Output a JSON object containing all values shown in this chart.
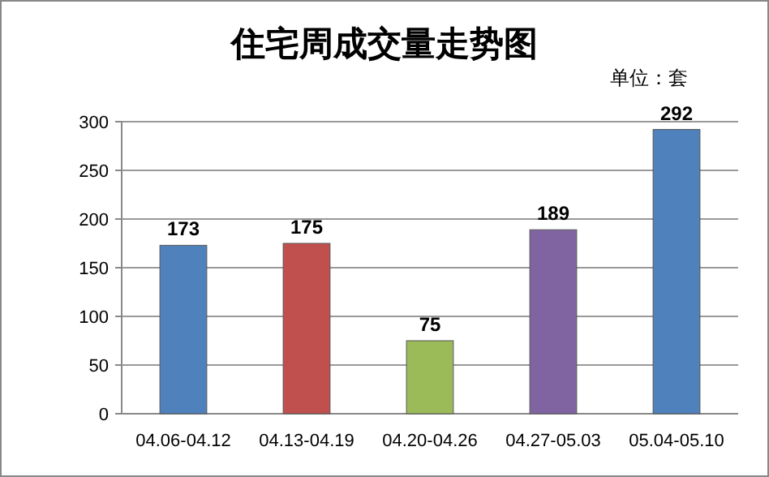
{
  "chart_data": {
    "type": "bar",
    "title": "住宅周成交量走势图",
    "annotations": [
      "单位：套"
    ],
    "categories": [
      "04.06-04.12",
      "04.13-04.19",
      "04.20-04.26",
      "04.27-05.03",
      "05.04-05.10"
    ],
    "values": [
      173,
      175,
      75,
      189,
      292
    ],
    "colors": [
      "#4f81bd",
      "#c0504d",
      "#9bbb59",
      "#8064a2",
      "#4f81bd"
    ],
    "ylim": [
      0,
      300
    ],
    "yticks": [
      0,
      50,
      100,
      150,
      200,
      250,
      300
    ],
    "grid": "y",
    "data_labels": true
  }
}
